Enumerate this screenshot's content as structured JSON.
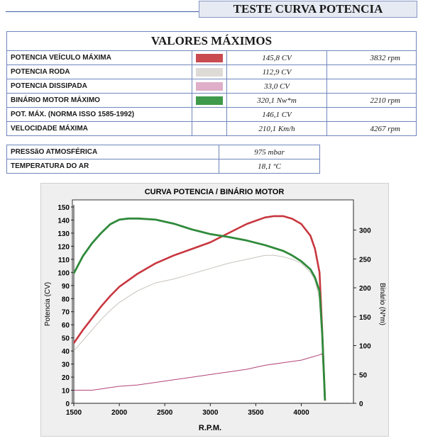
{
  "header": {
    "title": "TESTE CURVA POTENCIA"
  },
  "max_table": {
    "title": "VALORES MÁXIMOS",
    "rows": [
      {
        "label": "POTENCIA VEÍCULO MÁXIMA",
        "color": "#c94b50",
        "value": "145,8 CV",
        "rpm": "3832 rpm"
      },
      {
        "label": "POTENCIA RODA",
        "color": "#dedad6",
        "value": "112,9 CV",
        "rpm": ""
      },
      {
        "label": "POTENCIA DISSIPADA",
        "color": "#dfaec9",
        "value": "33,0 CV",
        "rpm": ""
      },
      {
        "label": "BINÁRIO MOTOR MÁXIMO",
        "color": "#3f9a4b",
        "value": "320,1 Nw*m",
        "rpm": "2210 rpm"
      },
      {
        "label": "POT. MÁX. (NORMA ISSO 1585-1992)",
        "color": "",
        "value": "146,1 CV",
        "rpm": ""
      },
      {
        "label": "VELOCIDADE MÁXIMA",
        "color": "",
        "value": "210,1 Km/h",
        "rpm": "4267 rpm"
      }
    ]
  },
  "env_table": {
    "rows": [
      {
        "label": "PRESSãO ATMOSFÉRICA",
        "value": "975 mbar"
      },
      {
        "label": "TEMPERATURA DO AR",
        "value": "18,1 ºC"
      }
    ]
  },
  "chart_data": {
    "type": "line",
    "title": "CURVA POTENCIA / BINÁRIO MOTOR",
    "xlabel": "R.P.M.",
    "ylabel": "Potencia (CV)",
    "y2label": "Binário (N*m)",
    "xlim": [
      1500,
      4300
    ],
    "ylim": [
      0,
      150
    ],
    "y2lim": [
      0,
      340
    ],
    "xticks": [
      1500,
      2000,
      2500,
      3000,
      3500,
      4000
    ],
    "yticks": [
      0,
      10,
      20,
      30,
      40,
      50,
      60,
      70,
      80,
      90,
      100,
      110,
      120,
      130,
      140,
      150
    ],
    "y2ticks": [
      0,
      50,
      100,
      150,
      200,
      250,
      300
    ],
    "grid": false,
    "series": [
      {
        "axis": "left",
        "color": "#c8373f",
        "x": [
          1500,
          1600,
          1700,
          1800,
          1900,
          2000,
          2200,
          2400,
          2600,
          2800,
          3000,
          3200,
          3400,
          3600,
          3700,
          3800,
          3900,
          4000,
          4100,
          4150,
          4200,
          4230,
          4260
        ],
        "y": [
          46,
          56,
          65,
          74,
          82,
          89,
          99,
          107,
          113,
          118,
          123,
          130,
          137,
          142,
          143,
          143,
          141,
          137,
          128,
          118,
          100,
          55,
          2
        ]
      },
      {
        "axis": "left",
        "color": "#c8c3bd",
        "x": [
          1500,
          1600,
          1700,
          1800,
          1900,
          2000,
          2200,
          2400,
          2600,
          2800,
          3000,
          3200,
          3400,
          3600,
          3700,
          3800,
          3900,
          4000,
          4100,
          4150,
          4200,
          4230,
          4260
        ],
        "y": [
          40,
          48,
          56,
          64,
          71,
          77,
          86,
          92,
          95,
          99,
          103,
          107,
          110,
          113,
          113,
          112,
          110,
          107,
          100,
          94,
          80,
          48,
          2
        ]
      },
      {
        "axis": "left",
        "color": "#b24477",
        "x": [
          1500,
          1600,
          1700,
          1800,
          1900,
          2000,
          2200,
          2400,
          2600,
          2800,
          3000,
          3200,
          3400,
          3600,
          3800,
          4000,
          4100,
          4200,
          4230,
          4260
        ],
        "y": [
          10,
          10,
          10,
          11,
          12,
          13,
          14,
          16,
          18,
          20,
          22,
          24,
          26,
          29,
          31,
          33,
          35,
          37,
          38,
          2
        ]
      },
      {
        "axis": "right",
        "color": "#2f8a3b",
        "x": [
          1500,
          1550,
          1600,
          1700,
          1800,
          1900,
          2000,
          2100,
          2210,
          2400,
          2600,
          2800,
          2900,
          3000,
          3200,
          3400,
          3600,
          3800,
          3900,
          4000,
          4100,
          4150,
          4200,
          4230,
          4260
        ],
        "y": [
          225,
          240,
          255,
          277,
          295,
          310,
          318,
          320,
          320,
          318,
          311,
          301,
          297,
          293,
          288,
          282,
          274,
          264,
          256,
          246,
          232,
          218,
          194,
          120,
          5
        ]
      }
    ]
  }
}
